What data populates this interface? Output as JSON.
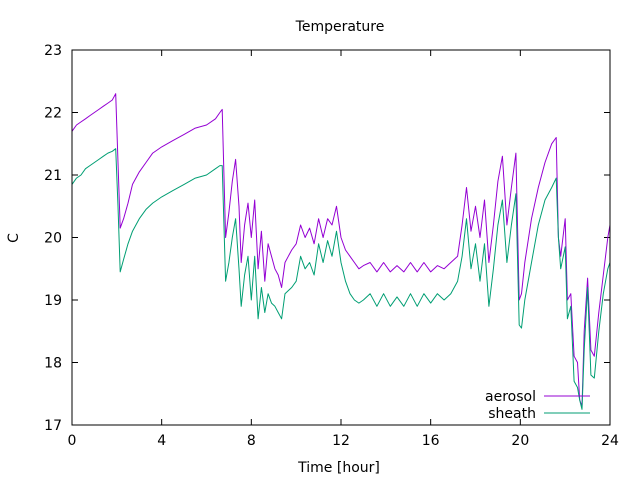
{
  "chart_data": {
    "type": "line",
    "title": "Temperature",
    "xlabel": "Time [hour]",
    "ylabel": "C",
    "xlim": [
      0,
      24
    ],
    "ylim": [
      17,
      23
    ],
    "xticks": [
      0,
      4,
      8,
      12,
      16,
      20,
      24
    ],
    "yticks": [
      17,
      18,
      19,
      20,
      21,
      22,
      23
    ],
    "grid": false,
    "legend_position": "bottom-right",
    "series": [
      {
        "name": "aerosol",
        "color": "#9400d3",
        "x": [
          0,
          0.2,
          0.4,
          0.6,
          0.8,
          1.0,
          1.2,
          1.4,
          1.6,
          1.8,
          1.95,
          2.05,
          2.15,
          2.3,
          2.5,
          2.7,
          3.0,
          3.3,
          3.6,
          4.0,
          4.5,
          5.0,
          5.5,
          6.0,
          6.4,
          6.6,
          6.7,
          6.85,
          7.0,
          7.15,
          7.3,
          7.45,
          7.55,
          7.7,
          7.85,
          8.0,
          8.15,
          8.3,
          8.45,
          8.6,
          8.75,
          8.9,
          9.05,
          9.2,
          9.35,
          9.5,
          9.65,
          9.8,
          10.0,
          10.2,
          10.4,
          10.6,
          10.8,
          11.0,
          11.2,
          11.4,
          11.6,
          11.8,
          12.0,
          12.2,
          12.4,
          12.6,
          12.8,
          13.0,
          13.3,
          13.6,
          13.9,
          14.2,
          14.5,
          14.8,
          15.1,
          15.4,
          15.7,
          16.0,
          16.3,
          16.6,
          16.9,
          17.2,
          17.4,
          17.6,
          17.8,
          18.0,
          18.2,
          18.4,
          18.6,
          18.8,
          19.0,
          19.2,
          19.4,
          19.6,
          19.8,
          19.95,
          20.05,
          20.2,
          20.5,
          20.8,
          21.1,
          21.4,
          21.6,
          21.7,
          21.8,
          22.0,
          22.1,
          22.25,
          22.4,
          22.55,
          22.65,
          22.75,
          22.85,
          23.0,
          23.15,
          23.3,
          23.5,
          23.7,
          23.9,
          24.0
        ],
        "y": [
          21.7,
          21.8,
          21.85,
          21.9,
          21.95,
          22.0,
          22.05,
          22.1,
          22.15,
          22.2,
          22.3,
          21.2,
          20.15,
          20.3,
          20.55,
          20.85,
          21.05,
          21.2,
          21.35,
          21.45,
          21.55,
          21.65,
          21.75,
          21.8,
          21.9,
          22.0,
          22.05,
          20.0,
          20.4,
          20.9,
          21.25,
          20.5,
          19.6,
          20.2,
          20.55,
          20.0,
          20.6,
          19.5,
          20.1,
          19.3,
          19.9,
          19.7,
          19.5,
          19.4,
          19.2,
          19.6,
          19.7,
          19.8,
          19.9,
          20.2,
          20.0,
          20.15,
          19.9,
          20.3,
          20.0,
          20.3,
          20.2,
          20.5,
          20.0,
          19.8,
          19.7,
          19.6,
          19.5,
          19.55,
          19.6,
          19.45,
          19.6,
          19.45,
          19.55,
          19.45,
          19.6,
          19.45,
          19.6,
          19.45,
          19.55,
          19.5,
          19.6,
          19.7,
          20.2,
          20.8,
          20.1,
          20.5,
          20.0,
          20.6,
          19.6,
          20.2,
          20.9,
          21.3,
          20.2,
          20.8,
          21.35,
          19.0,
          19.1,
          19.6,
          20.3,
          20.8,
          21.2,
          21.5,
          21.6,
          20.0,
          19.7,
          20.3,
          19.0,
          19.1,
          18.1,
          18.0,
          17.4,
          17.3,
          18.5,
          19.35,
          18.2,
          18.1,
          18.8,
          19.4,
          20.0,
          20.2
        ]
      },
      {
        "name": "sheath",
        "color": "#009e73",
        "x": [
          0,
          0.2,
          0.4,
          0.6,
          0.8,
          1.0,
          1.2,
          1.4,
          1.6,
          1.8,
          1.95,
          2.05,
          2.15,
          2.3,
          2.5,
          2.7,
          3.0,
          3.3,
          3.6,
          4.0,
          4.5,
          5.0,
          5.5,
          6.0,
          6.4,
          6.6,
          6.7,
          6.85,
          7.0,
          7.15,
          7.3,
          7.45,
          7.55,
          7.7,
          7.85,
          8.0,
          8.15,
          8.3,
          8.45,
          8.6,
          8.75,
          8.9,
          9.05,
          9.2,
          9.35,
          9.5,
          9.65,
          9.8,
          10.0,
          10.2,
          10.4,
          10.6,
          10.8,
          11.0,
          11.2,
          11.4,
          11.6,
          11.8,
          12.0,
          12.2,
          12.4,
          12.6,
          12.8,
          13.0,
          13.3,
          13.6,
          13.9,
          14.2,
          14.5,
          14.8,
          15.1,
          15.4,
          15.7,
          16.0,
          16.3,
          16.6,
          16.9,
          17.2,
          17.4,
          17.6,
          17.8,
          18.0,
          18.2,
          18.4,
          18.6,
          18.8,
          19.0,
          19.2,
          19.4,
          19.6,
          19.8,
          19.95,
          20.05,
          20.2,
          20.5,
          20.8,
          21.1,
          21.4,
          21.6,
          21.7,
          21.8,
          22.0,
          22.1,
          22.25,
          22.4,
          22.55,
          22.65,
          22.75,
          22.85,
          23.0,
          23.15,
          23.3,
          23.5,
          23.7,
          23.9,
          24.0
        ],
        "y": [
          20.85,
          20.95,
          21.0,
          21.1,
          21.15,
          21.2,
          21.25,
          21.3,
          21.35,
          21.38,
          21.42,
          20.5,
          19.45,
          19.65,
          19.9,
          20.1,
          20.3,
          20.45,
          20.55,
          20.65,
          20.75,
          20.85,
          20.95,
          21.0,
          21.1,
          21.15,
          21.15,
          19.3,
          19.6,
          20.0,
          20.3,
          19.5,
          18.9,
          19.4,
          19.7,
          19.0,
          19.7,
          18.7,
          19.2,
          18.8,
          19.1,
          18.95,
          18.9,
          18.8,
          18.7,
          19.1,
          19.15,
          19.2,
          19.3,
          19.7,
          19.5,
          19.6,
          19.4,
          19.9,
          19.6,
          19.95,
          19.7,
          20.1,
          19.6,
          19.3,
          19.1,
          19.0,
          18.95,
          19.0,
          19.1,
          18.9,
          19.1,
          18.9,
          19.05,
          18.9,
          19.1,
          18.9,
          19.1,
          18.95,
          19.1,
          19.0,
          19.1,
          19.3,
          19.7,
          20.3,
          19.5,
          19.9,
          19.3,
          19.9,
          18.9,
          19.5,
          20.2,
          20.6,
          19.6,
          20.2,
          20.7,
          18.6,
          18.55,
          19.0,
          19.6,
          20.2,
          20.6,
          20.8,
          20.95,
          20.0,
          19.5,
          19.85,
          18.7,
          18.9,
          17.7,
          17.6,
          17.4,
          17.25,
          18.2,
          19.2,
          17.8,
          17.75,
          18.5,
          19.1,
          19.5,
          19.6
        ]
      }
    ]
  }
}
